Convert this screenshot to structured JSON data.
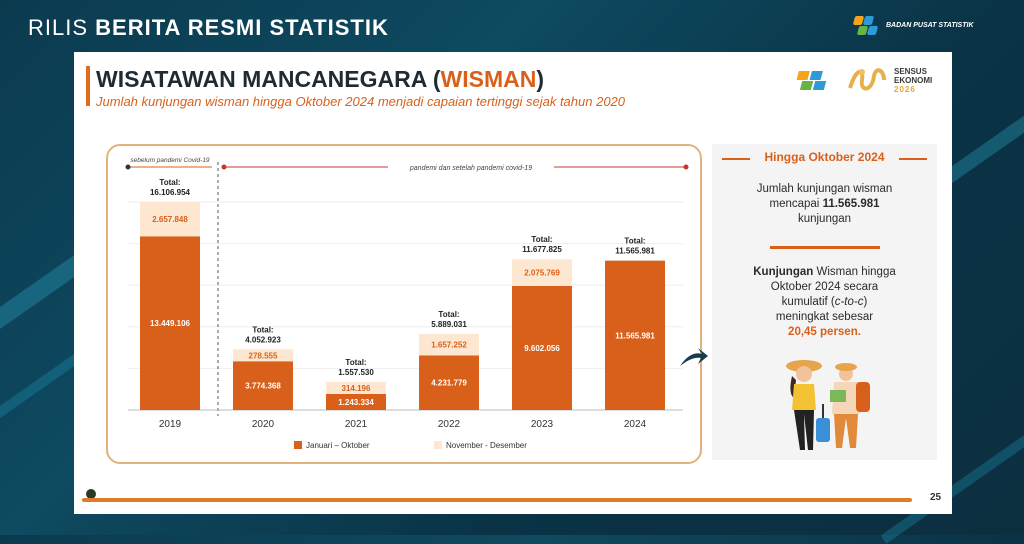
{
  "header": {
    "title_light": "RILIS ",
    "title_bold": "BERITA RESMI STATISTIK",
    "org_name": "BADAN PUSAT STATISTIK"
  },
  "slide": {
    "title_main": "WISATAWAN MANCANEGARA (",
    "title_accent": "WISMAN",
    "title_close": ")",
    "subtitle": "Jumlah kunjungan wisman hingga Oktober 2024 menjadi capaian tertinggi sejak tahun 2020",
    "sensus_logo": {
      "line1": "SENSUS",
      "line2": "EKONOMI",
      "line3": "2026"
    },
    "page_number": "25"
  },
  "chart_data": {
    "type": "bar",
    "stacked": true,
    "categories": [
      "2019",
      "2020",
      "2021",
      "2022",
      "2023",
      "2024"
    ],
    "series": [
      {
        "name": "Januari – Oktober",
        "color": "#d9601a",
        "values": [
          13449106,
          3774368,
          1243334,
          4231779,
          9602056,
          11565981
        ],
        "labels": [
          "13.449.106",
          "3.774.368",
          "1.243.334",
          "4.231.779",
          "9.602.056",
          "11.565.981"
        ]
      },
      {
        "name": "November - Desember",
        "color": "#fde7d0",
        "values": [
          2657848,
          278555,
          314196,
          1657252,
          2075769,
          null
        ],
        "labels": [
          "2.657.848",
          "278.555",
          "314.196",
          "1.657.252",
          "2.075.769",
          ""
        ]
      }
    ],
    "totals": [
      {
        "label": "Total:",
        "value": "16.106.954"
      },
      {
        "label": "Total:",
        "value": "4.052.923"
      },
      {
        "label": "Total:",
        "value": "1.557.530"
      },
      {
        "label": "Total:",
        "value": "5.889.031"
      },
      {
        "label": "Total:",
        "value": "11.677.825"
      },
      {
        "label": "Total:",
        "value": "11.565.981"
      }
    ],
    "period_labels": {
      "before": "sebelum pandemi Covid-19",
      "after": "pandemi dan setelah pandemi covid-19"
    },
    "legend_position": "bottom",
    "colors": {
      "accent": "#d9601a",
      "light": "#fde7d0",
      "box_border": "#e2b27e"
    }
  },
  "side_panel": {
    "heading": "Hingga Oktober 2024",
    "text1_a": "Jumlah kunjungan wisman",
    "text1_b": "mencapai",
    "text1_value": "11.565.981",
    "text1_c": "kunjungan",
    "text2_a": "Kunjungan",
    "text2_b": " Wisman hingga",
    "text2_c": "Oktober 2024 secara",
    "text2_d": "kumulatif (",
    "text2_e": "c-to-c",
    "text2_f": ")",
    "text2_g": "meningkat sebesar",
    "text2_value": "20,45 persen."
  }
}
